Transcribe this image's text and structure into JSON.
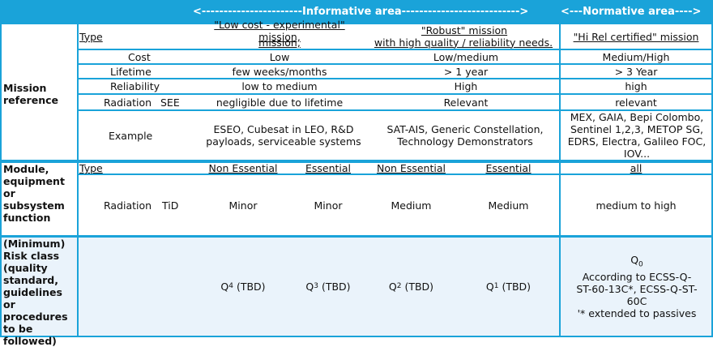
{
  "header": {
    "informative": "<-----------------------Informative area--------------------------->",
    "normative": "<---Normative area---->"
  },
  "mission": {
    "section_label": "Mission reference",
    "type_label": "Type",
    "col1_title": "\"Low cost - experimental\" mission,",
    "col2_title": "\"Robust\" mission",
    "col2_subtitle": "with high quality / reliability needs.",
    "col3_title": "\"Hi Rel certified\" mission",
    "rows": [
      {
        "label": "Cost",
        "c1": "Low",
        "c2": "Low/medium",
        "c3": "Medium/High"
      },
      {
        "label": "Lifetime",
        "c1": "few weeks/months",
        "c2": "> 1 year",
        "c3": "> 3 Year"
      },
      {
        "label": "Reliability",
        "c1": "low to medium",
        "c2": "High",
        "c3": "high"
      },
      {
        "label": "Radiation",
        "sub": "SEE",
        "c1": "negligible due to lifetime",
        "c2": "Relevant",
        "c3": "relevant"
      },
      {
        "label": "Example",
        "c1": "ESEO, Cubesat in LEO, R&D payloads, serviceable systems",
        "c2": "SAT-AIS, Generic Constellation, Technology Demonstrators",
        "c3": "MEX, GAIA, Bepi Colombo, Sentinel 1,2,3, METOP SG, EDRS, Electra, Galileo FOC, IOV..."
      }
    ]
  },
  "module": {
    "section_label": "Module, equipment or subsystem function",
    "type_label": "Type",
    "types": [
      "Non Essential",
      "Essential",
      "Non Essential",
      "Essential",
      "all"
    ],
    "radiation_label": "Radiation",
    "radiation_sub": "TiD",
    "values": [
      "Minor",
      "Minor",
      "Medium",
      "Medium",
      "medium to high"
    ]
  },
  "risk": {
    "section_label": "(Minimum) Risk class (quality standard, guidelines or procedures to be followed)",
    "classes": [
      {
        "base": "Q",
        "sub": "4",
        "suffix": " (TBD)"
      },
      {
        "base": "Q",
        "sub": "3",
        "suffix": " (TBD)"
      },
      {
        "base": "Q",
        "sub": "2",
        "suffix": " (TBD)"
      },
      {
        "base": "Q",
        "sub": "1",
        "suffix": " (TBD)"
      }
    ],
    "normative_class": {
      "base": "Q",
      "sub": "0"
    },
    "normative_text": "According to ECSS-Q-ST-60-13C*, ECSS-Q-ST-60C",
    "normative_note": "'* extended to passives"
  }
}
